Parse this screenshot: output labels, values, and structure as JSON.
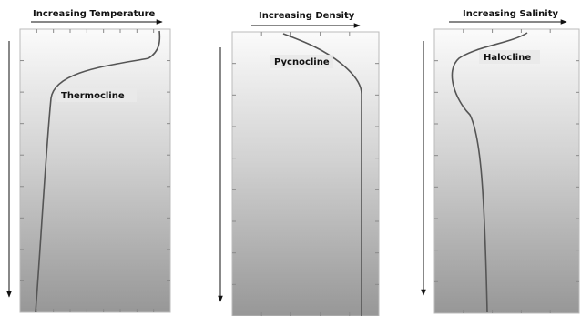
{
  "panels": [
    {
      "title": "Increasing Temperature",
      "label": "Thermocline"
    },
    {
      "title": "Increasing Density",
      "label": "Pycnocline"
    },
    {
      "title": "Increasing Salinity",
      "label": "Halocline"
    }
  ]
}
